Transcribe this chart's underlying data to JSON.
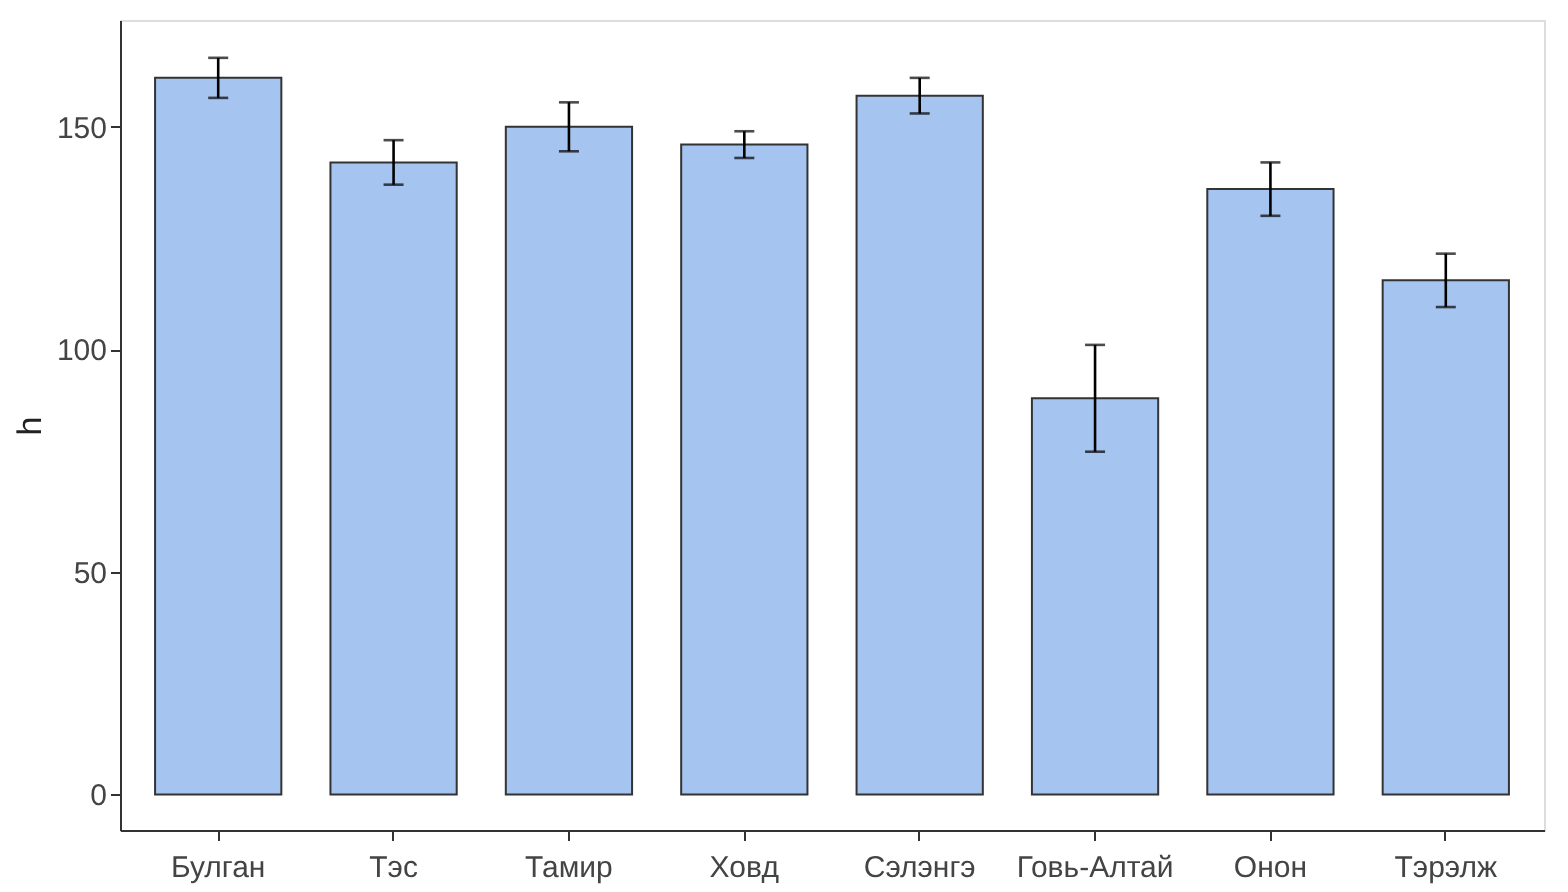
{
  "chart_data": {
    "type": "bar",
    "ylabel": "h",
    "categories": [
      "Булган",
      "Тэс",
      "Тамир",
      "Ховд",
      "Сэлэнгэ",
      "Говь-Алтай",
      "Онон",
      "Тэрэлж"
    ],
    "values": [
      161,
      142,
      150,
      146,
      157,
      89,
      136,
      115.5
    ],
    "errors": [
      4.5,
      5,
      5.5,
      3,
      4,
      12,
      6,
      6
    ],
    "color": "#a6c4f0",
    "ylim": [
      -8,
      174
    ],
    "yticks": [
      0,
      50,
      100,
      150
    ],
    "grid": false
  }
}
